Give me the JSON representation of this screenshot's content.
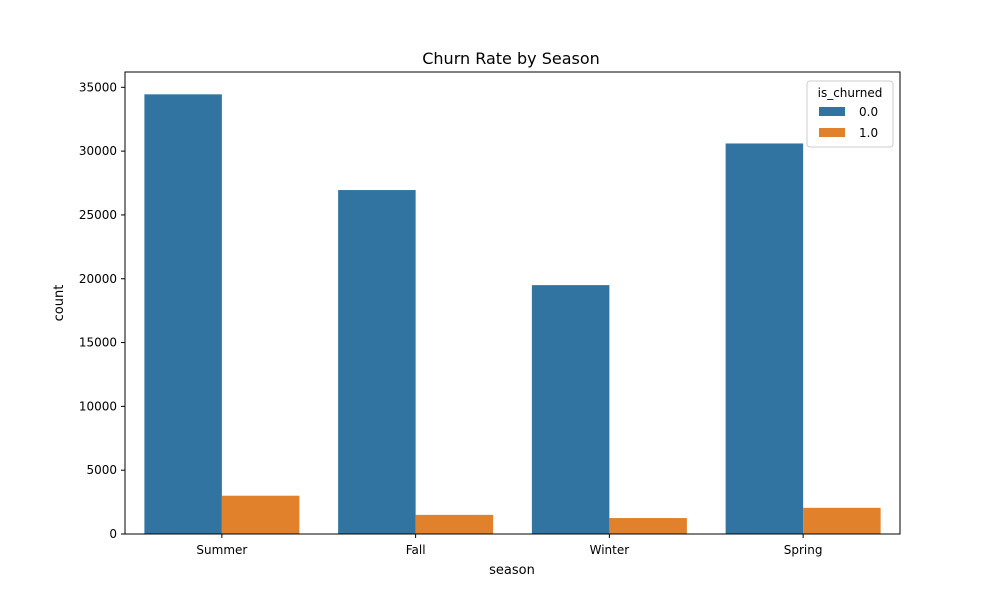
{
  "chart_data": {
    "type": "bar",
    "title": "Churn Rate by Season",
    "xlabel": "season",
    "ylabel": "count",
    "categories": [
      "Summer",
      "Fall",
      "Winter",
      "Spring"
    ],
    "series": [
      {
        "name": "0.0",
        "values": [
          34450,
          26950,
          19500,
          30600
        ],
        "color": "#3274a1"
      },
      {
        "name": "1.0",
        "values": [
          3000,
          1500,
          1250,
          2050
        ],
        "color": "#e1812c"
      }
    ],
    "ylim": [
      0,
      36200
    ],
    "yticks": [
      0,
      5000,
      10000,
      15000,
      20000,
      25000,
      30000,
      35000
    ],
    "grid": false,
    "legend": {
      "title": "is_churned",
      "placement": "top-right"
    }
  }
}
